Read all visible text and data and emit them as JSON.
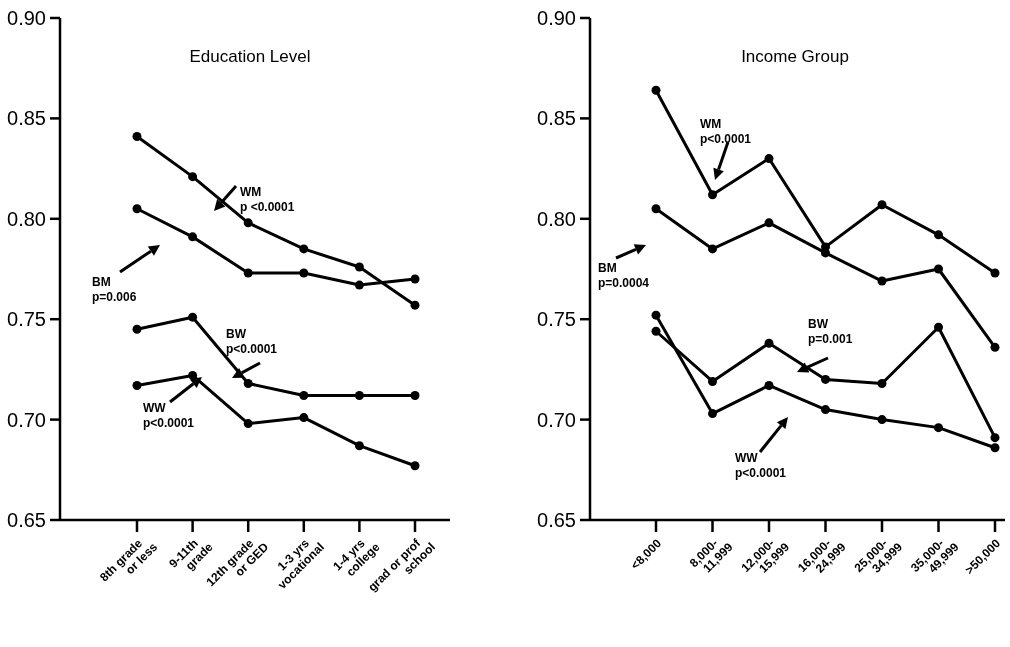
{
  "chart_data": [
    {
      "type": "line",
      "title": "Education Level",
      "categories": [
        "8th grade\nor less",
        "9-11th\ngrade",
        "12th grade\nor GED",
        "1-3 yrs\nvocational",
        "1-4 yrs\ncollege",
        "grad or prof\nschool"
      ],
      "ylim": [
        0.65,
        0.9
      ],
      "yticks": [
        0.65,
        {
          "value": 0.7,
          "label": "0.70"
        },
        0.75,
        {
          "value": 0.8,
          "label": "0.80"
        },
        0.85,
        {
          "value": 0.9,
          "label": "0.90"
        }
      ],
      "marker": "circle",
      "series": [
        {
          "name": "WM",
          "color": "#000000",
          "values": [
            0.841,
            0.821,
            0.798,
            0.785,
            0.776,
            0.757
          ]
        },
        {
          "name": "BM",
          "color": "#000000",
          "values": [
            0.805,
            0.791,
            0.773,
            0.773,
            0.767,
            0.77
          ]
        },
        {
          "name": "BW",
          "color": "#000000",
          "values": [
            0.745,
            0.751,
            0.718,
            0.712,
            0.712,
            0.712
          ]
        },
        {
          "name": "WW",
          "color": "#000000",
          "values": [
            0.717,
            0.722,
            0.698,
            0.701,
            0.687,
            0.677
          ]
        }
      ],
      "annotations": [
        "p <0.0001",
        "p=0.006",
        "p<0.0001",
        "p<0.0001"
      ]
    },
    {
      "type": "line",
      "title": "Income Group",
      "categories": [
        "<8,000",
        "8,000-\n11,999",
        "12,000-\n15,999",
        "16,000-\n24,999",
        "25,000-\n34,999",
        "35,000-\n49,999",
        ">50,000"
      ],
      "ylim": [
        0.65,
        0.9
      ],
      "yticks": [
        0.65,
        {
          "value": 0.7,
          "label": "0.70"
        },
        0.75,
        {
          "value": 0.8,
          "label": "0.80"
        },
        0.85,
        {
          "value": 0.9,
          "label": "0.90"
        }
      ],
      "marker": "circle",
      "series": [
        {
          "name": "WM",
          "color": "#000000",
          "values": [
            0.864,
            0.812,
            0.83,
            0.786,
            0.807,
            0.792,
            0.773
          ]
        },
        {
          "name": "BM",
          "color": "#000000",
          "values": [
            0.805,
            0.785,
            0.798,
            0.783,
            0.769,
            0.775,
            0.736
          ]
        },
        {
          "name": "BW",
          "color": "#000000",
          "values": [
            0.744,
            0.719,
            0.738,
            0.72,
            0.718,
            0.746,
            0.691
          ]
        },
        {
          "name": "WW",
          "color": "#000000",
          "values": [
            0.752,
            0.703,
            0.717,
            0.705,
            0.7,
            0.696,
            0.686
          ]
        }
      ],
      "annotations": [
        "p<0.0001",
        "p=0.0004",
        "p=0.001",
        "p<0.0001"
      ]
    }
  ]
}
